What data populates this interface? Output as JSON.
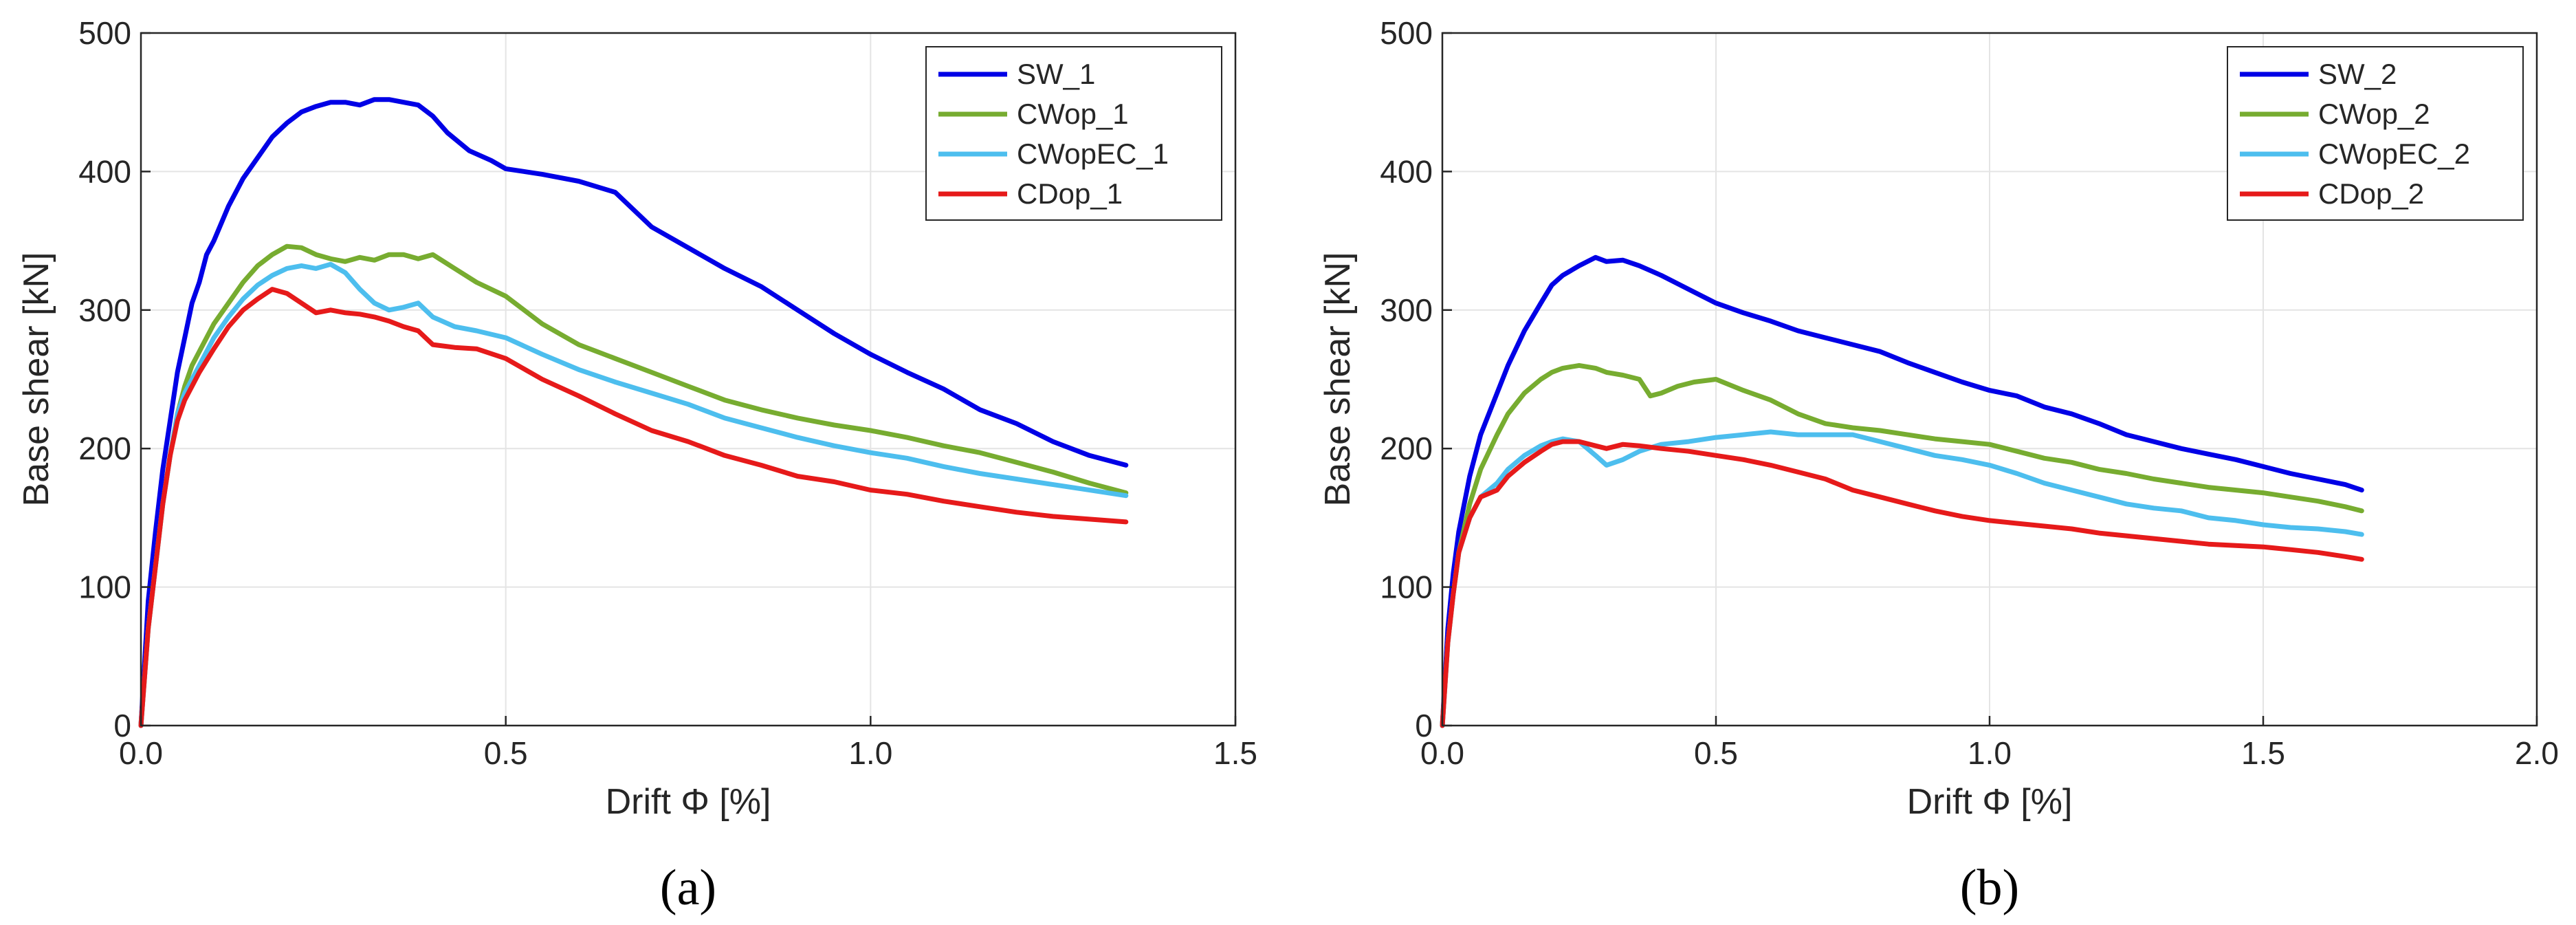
{
  "chart_data": [
    {
      "type": "line",
      "panel": "a",
      "panel_label": "(a)",
      "xlabel": "Drift Φ [%]",
      "ylabel": "Base shear [kN]",
      "xlim": [
        0,
        1.5
      ],
      "ylim": [
        0,
        500
      ],
      "xticks": [
        0,
        0.5,
        1,
        1.5
      ],
      "xtick_labels": [
        "0.0",
        "0.5",
        "1.0",
        "1.5"
      ],
      "yticks": [
        0,
        100,
        200,
        300,
        400,
        500
      ],
      "ytick_labels": [
        "0",
        "100",
        "200",
        "300",
        "400",
        "500"
      ],
      "grid": true,
      "legend_position": "top-right",
      "series": [
        {
          "name": "SW_1",
          "color": "#0000e6",
          "x": [
            0,
            0.01,
            0.02,
            0.03,
            0.04,
            0.05,
            0.06,
            0.07,
            0.08,
            0.09,
            0.1,
            0.12,
            0.14,
            0.16,
            0.18,
            0.2,
            0.22,
            0.24,
            0.26,
            0.28,
            0.3,
            0.32,
            0.34,
            0.36,
            0.38,
            0.4,
            0.42,
            0.45,
            0.48,
            0.5,
            0.55,
            0.6,
            0.65,
            0.7,
            0.75,
            0.8,
            0.85,
            0.9,
            0.95,
            1.0,
            1.05,
            1.1,
            1.15,
            1.2,
            1.25,
            1.3,
            1.35
          ],
          "y": [
            0,
            90,
            140,
            185,
            220,
            255,
            280,
            305,
            320,
            340,
            350,
            375,
            395,
            410,
            425,
            435,
            443,
            447,
            450,
            450,
            448,
            452,
            452,
            450,
            448,
            440,
            428,
            415,
            408,
            402,
            398,
            393,
            385,
            360,
            345,
            330,
            317,
            300,
            283,
            268,
            255,
            243,
            228,
            218,
            205,
            195,
            188
          ]
        },
        {
          "name": "CWop_1",
          "color": "#77ac30",
          "x": [
            0,
            0.01,
            0.02,
            0.03,
            0.04,
            0.05,
            0.06,
            0.07,
            0.08,
            0.1,
            0.12,
            0.14,
            0.16,
            0.18,
            0.2,
            0.22,
            0.24,
            0.26,
            0.28,
            0.3,
            0.32,
            0.34,
            0.36,
            0.38,
            0.4,
            0.43,
            0.46,
            0.5,
            0.55,
            0.6,
            0.65,
            0.7,
            0.75,
            0.8,
            0.85,
            0.9,
            0.95,
            1.0,
            1.05,
            1.1,
            1.15,
            1.2,
            1.25,
            1.3,
            1.35
          ],
          "y": [
            0,
            70,
            115,
            160,
            195,
            225,
            245,
            260,
            270,
            290,
            305,
            320,
            332,
            340,
            346,
            345,
            340,
            337,
            335,
            338,
            336,
            340,
            340,
            337,
            340,
            330,
            320,
            310,
            290,
            275,
            265,
            255,
            245,
            235,
            228,
            222,
            217,
            213,
            208,
            202,
            197,
            190,
            183,
            175,
            168
          ]
        },
        {
          "name": "CWopEC_1",
          "color": "#4dbeee",
          "x": [
            0,
            0.01,
            0.02,
            0.03,
            0.04,
            0.05,
            0.06,
            0.07,
            0.08,
            0.1,
            0.12,
            0.14,
            0.16,
            0.18,
            0.2,
            0.22,
            0.24,
            0.26,
            0.28,
            0.3,
            0.32,
            0.34,
            0.36,
            0.38,
            0.4,
            0.43,
            0.46,
            0.5,
            0.55,
            0.6,
            0.65,
            0.7,
            0.75,
            0.8,
            0.85,
            0.9,
            0.95,
            1.0,
            1.05,
            1.1,
            1.15,
            1.2,
            1.25,
            1.3,
            1.35
          ],
          "y": [
            0,
            70,
            115,
            160,
            195,
            225,
            240,
            250,
            260,
            280,
            295,
            308,
            318,
            325,
            330,
            332,
            330,
            333,
            327,
            315,
            305,
            300,
            302,
            305,
            295,
            288,
            285,
            280,
            268,
            257,
            248,
            240,
            232,
            222,
            215,
            208,
            202,
            197,
            193,
            187,
            182,
            178,
            174,
            170,
            166
          ]
        },
        {
          "name": "CDop_1",
          "color": "#e61a1a",
          "x": [
            0,
            0.01,
            0.02,
            0.03,
            0.04,
            0.05,
            0.06,
            0.07,
            0.08,
            0.1,
            0.12,
            0.14,
            0.16,
            0.18,
            0.2,
            0.22,
            0.24,
            0.26,
            0.28,
            0.3,
            0.32,
            0.34,
            0.36,
            0.38,
            0.4,
            0.43,
            0.46,
            0.5,
            0.55,
            0.6,
            0.65,
            0.7,
            0.75,
            0.8,
            0.85,
            0.9,
            0.95,
            1.0,
            1.05,
            1.1,
            1.15,
            1.2,
            1.25,
            1.3,
            1.35
          ],
          "y": [
            0,
            70,
            115,
            160,
            195,
            220,
            235,
            245,
            255,
            272,
            288,
            300,
            308,
            315,
            312,
            305,
            298,
            300,
            298,
            297,
            295,
            292,
            288,
            285,
            275,
            273,
            272,
            265,
            250,
            238,
            225,
            213,
            205,
            195,
            188,
            180,
            176,
            170,
            167,
            162,
            158,
            154,
            151,
            149,
            147
          ]
        }
      ]
    },
    {
      "type": "line",
      "panel": "b",
      "panel_label": "(b)",
      "xlabel": "Drift Φ [%]",
      "ylabel": "Base shear [kN]",
      "xlim": [
        0,
        2.0
      ],
      "ylim": [
        0,
        500
      ],
      "xticks": [
        0,
        0.5,
        1,
        1.5,
        2
      ],
      "xtick_labels": [
        "0.0",
        "0.5",
        "1.0",
        "1.5",
        "2.0"
      ],
      "yticks": [
        0,
        100,
        200,
        300,
        400,
        500
      ],
      "ytick_labels": [
        "0",
        "100",
        "200",
        "300",
        "400",
        "500"
      ],
      "grid": true,
      "legend_position": "top-right",
      "series": [
        {
          "name": "SW_2",
          "color": "#0000e6",
          "x": [
            0,
            0.01,
            0.02,
            0.03,
            0.05,
            0.07,
            0.1,
            0.12,
            0.15,
            0.18,
            0.2,
            0.22,
            0.25,
            0.28,
            0.3,
            0.33,
            0.36,
            0.4,
            0.45,
            0.5,
            0.55,
            0.6,
            0.65,
            0.7,
            0.75,
            0.8,
            0.85,
            0.9,
            0.95,
            1.0,
            1.05,
            1.1,
            1.15,
            1.2,
            1.25,
            1.3,
            1.35,
            1.4,
            1.45,
            1.5,
            1.55,
            1.6,
            1.65,
            1.68
          ],
          "y": [
            0,
            70,
            110,
            140,
            180,
            210,
            240,
            260,
            285,
            305,
            318,
            325,
            332,
            338,
            335,
            336,
            332,
            325,
            315,
            305,
            298,
            292,
            285,
            280,
            275,
            270,
            262,
            255,
            248,
            242,
            238,
            230,
            225,
            218,
            210,
            205,
            200,
            196,
            192,
            187,
            182,
            178,
            174,
            170
          ]
        },
        {
          "name": "CWop_2",
          "color": "#77ac30",
          "x": [
            0,
            0.01,
            0.02,
            0.03,
            0.05,
            0.07,
            0.1,
            0.12,
            0.15,
            0.18,
            0.2,
            0.22,
            0.25,
            0.28,
            0.3,
            0.33,
            0.36,
            0.38,
            0.4,
            0.43,
            0.46,
            0.5,
            0.55,
            0.6,
            0.65,
            0.7,
            0.75,
            0.8,
            0.85,
            0.9,
            0.95,
            1.0,
            1.05,
            1.1,
            1.15,
            1.2,
            1.25,
            1.3,
            1.35,
            1.4,
            1.45,
            1.5,
            1.55,
            1.6,
            1.65,
            1.68
          ],
          "y": [
            0,
            60,
            95,
            125,
            160,
            185,
            210,
            225,
            240,
            250,
            255,
            258,
            260,
            258,
            255,
            253,
            250,
            238,
            240,
            245,
            248,
            250,
            242,
            235,
            225,
            218,
            215,
            213,
            210,
            207,
            205,
            203,
            198,
            193,
            190,
            185,
            182,
            178,
            175,
            172,
            170,
            168,
            165,
            162,
            158,
            155
          ]
        },
        {
          "name": "CWopEC_2",
          "color": "#4dbeee",
          "x": [
            0,
            0.01,
            0.02,
            0.03,
            0.05,
            0.07,
            0.1,
            0.12,
            0.15,
            0.18,
            0.2,
            0.22,
            0.25,
            0.28,
            0.3,
            0.33,
            0.36,
            0.4,
            0.45,
            0.5,
            0.55,
            0.6,
            0.65,
            0.7,
            0.75,
            0.8,
            0.85,
            0.9,
            0.95,
            1.0,
            1.05,
            1.1,
            1.15,
            1.2,
            1.25,
            1.3,
            1.35,
            1.4,
            1.45,
            1.5,
            1.55,
            1.6,
            1.65,
            1.68
          ],
          "y": [
            0,
            60,
            95,
            125,
            150,
            165,
            175,
            185,
            195,
            202,
            205,
            207,
            205,
            195,
            188,
            192,
            198,
            203,
            205,
            208,
            210,
            212,
            210,
            210,
            210,
            205,
            200,
            195,
            192,
            188,
            182,
            175,
            170,
            165,
            160,
            157,
            155,
            150,
            148,
            145,
            143,
            142,
            140,
            138
          ]
        },
        {
          "name": "CDop_2",
          "color": "#e61a1a",
          "x": [
            0,
            0.01,
            0.02,
            0.03,
            0.05,
            0.07,
            0.1,
            0.12,
            0.15,
            0.18,
            0.2,
            0.22,
            0.25,
            0.28,
            0.3,
            0.33,
            0.36,
            0.4,
            0.45,
            0.5,
            0.55,
            0.6,
            0.65,
            0.7,
            0.75,
            0.8,
            0.85,
            0.9,
            0.95,
            1.0,
            1.05,
            1.1,
            1.15,
            1.2,
            1.25,
            1.3,
            1.35,
            1.4,
            1.45,
            1.5,
            1.55,
            1.6,
            1.65,
            1.68
          ],
          "y": [
            0,
            60,
            95,
            125,
            150,
            165,
            170,
            180,
            190,
            198,
            203,
            205,
            205,
            202,
            200,
            203,
            202,
            200,
            198,
            195,
            192,
            188,
            183,
            178,
            170,
            165,
            160,
            155,
            151,
            148,
            146,
            144,
            142,
            139,
            137,
            135,
            133,
            131,
            130,
            129,
            127,
            125,
            122,
            120
          ]
        }
      ]
    }
  ]
}
